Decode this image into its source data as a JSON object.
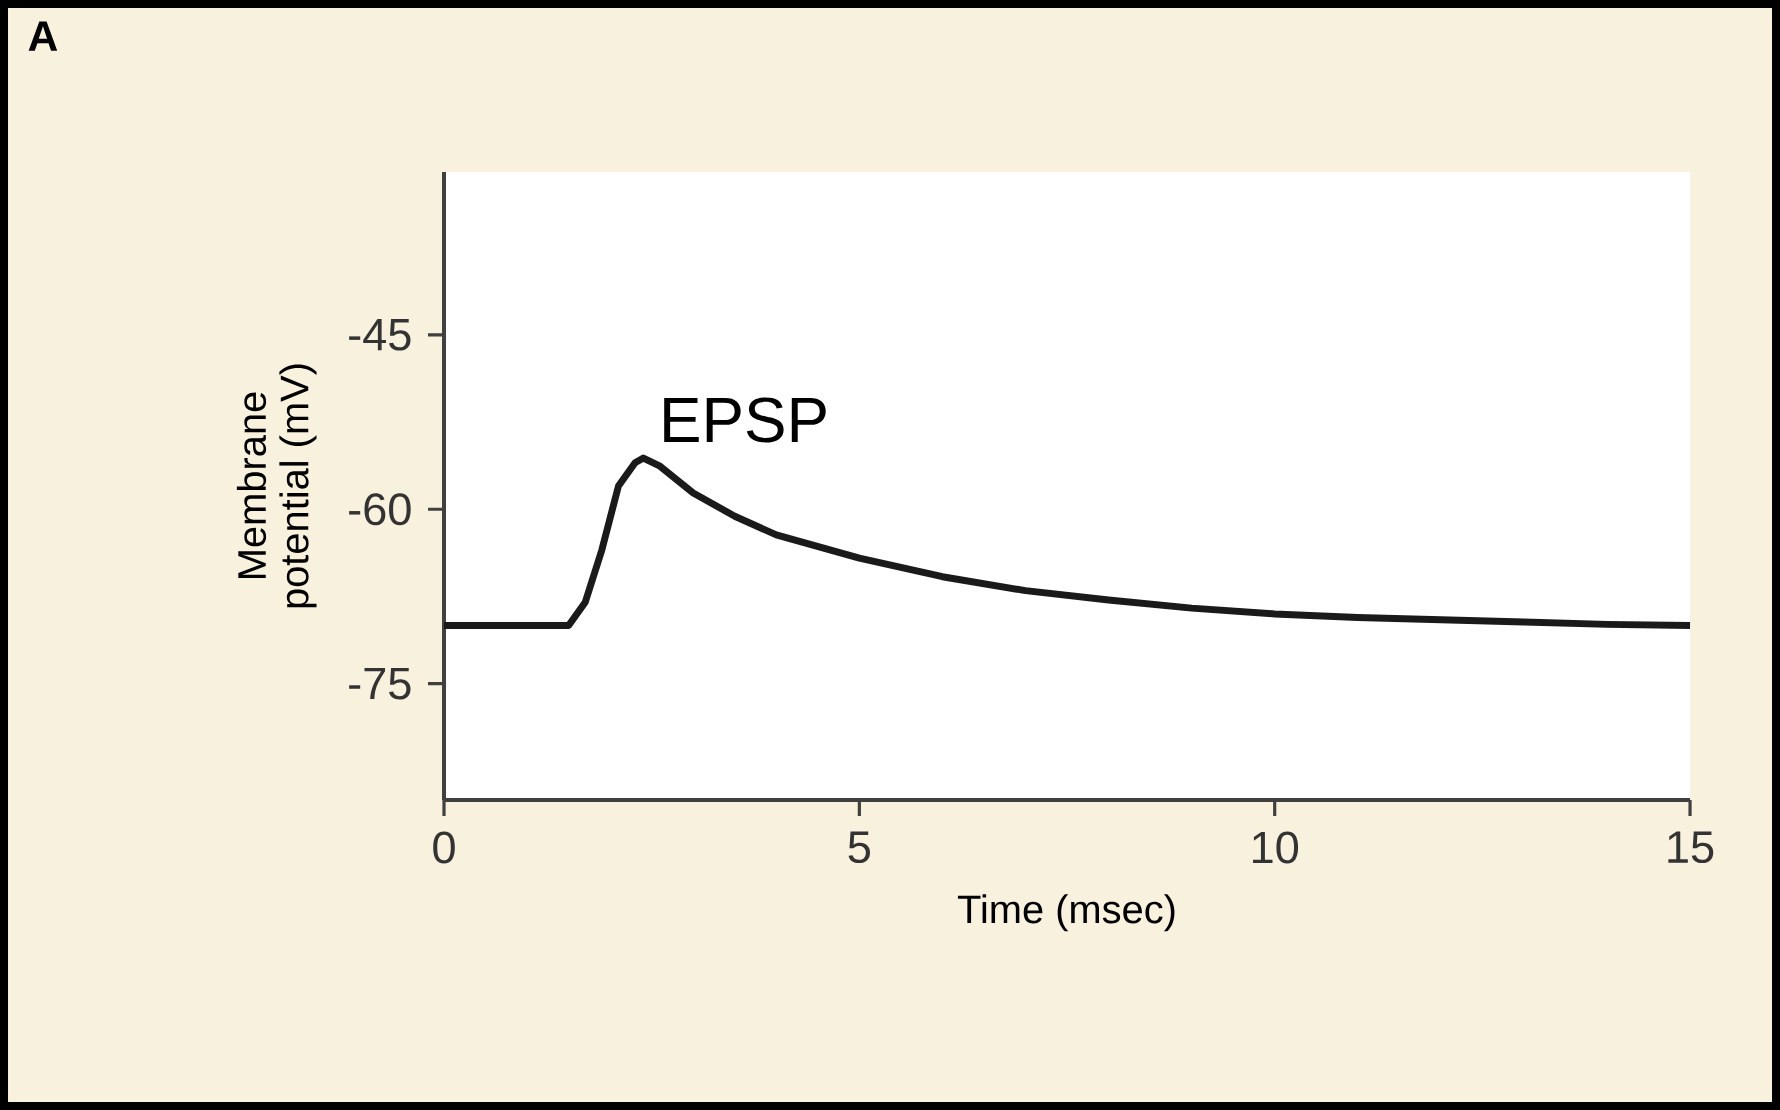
{
  "chart_data": {
    "type": "line",
    "xlabel": "Time (msec)",
    "ylabel": "Membrane\npotential (mV)",
    "annotations": [
      "A",
      {
        "text": "EPSP",
        "x": 2.4,
        "y": -55.6
      }
    ],
    "series": [
      {
        "color": "#1a1a1a",
        "x": [
          0,
          1.5,
          1.7,
          1.9,
          2.1,
          2.3,
          2.4,
          2.6,
          3,
          3.5,
          4,
          5,
          6,
          7,
          8,
          9,
          10,
          11,
          12,
          13,
          14,
          15
        ],
        "values": [
          -70,
          -70,
          -68,
          -63.5,
          -58,
          -56,
          -55.6,
          -56.3,
          -58.6,
          -60.6,
          -62.2,
          -64.2,
          -65.8,
          -67,
          -67.8,
          -68.5,
          -69,
          -69.3,
          -69.5,
          -69.7,
          -69.9,
          -70
        ]
      }
    ],
    "xlim": [
      0,
      15
    ],
    "ylim": [
      -85,
      -31
    ],
    "xticks": [
      0,
      5,
      10,
      15
    ],
    "yticks": [
      -45,
      -60,
      -75
    ],
    "marker": "none",
    "line_style": "solid"
  }
}
